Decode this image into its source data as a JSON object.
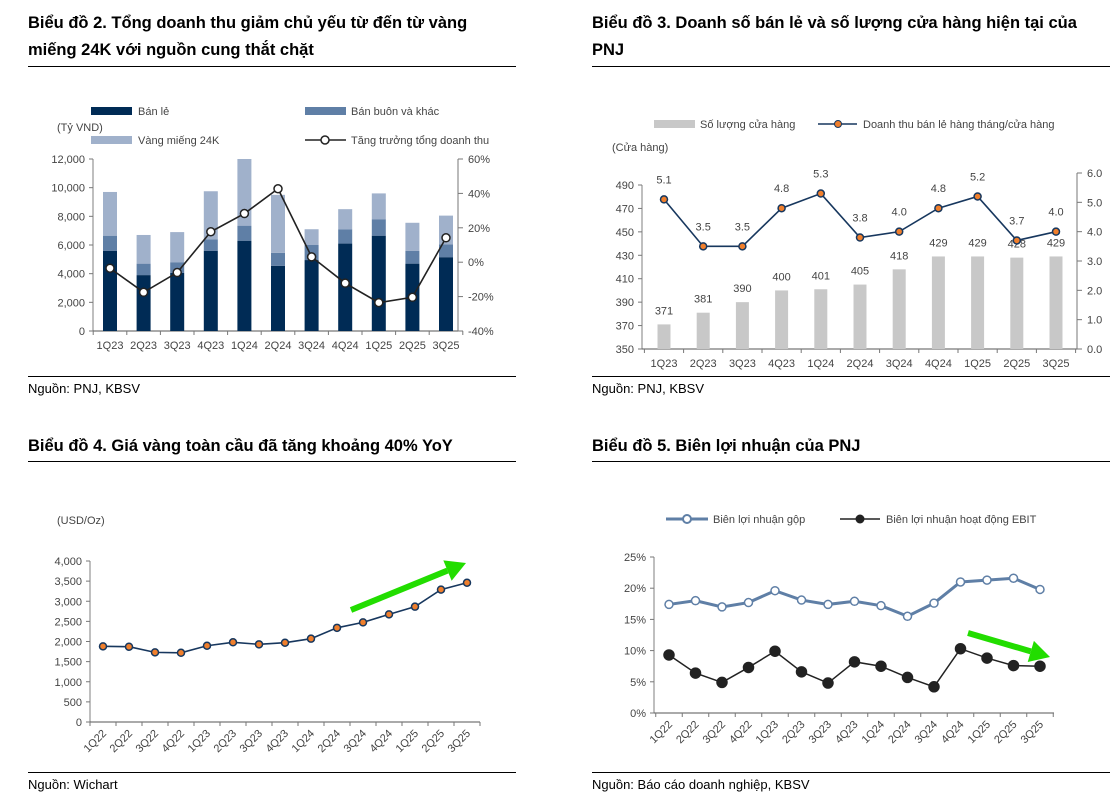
{
  "charts": [
    {
      "title": "Biểu đồ 2. Tổng doanh thu giảm chủ yếu từ đến từ vàng miếng 24K với nguồn cung thắt chặt",
      "source": "Nguồn: PNJ, KBSV"
    },
    {
      "title": "Biểu đồ 3. Doanh số bán lẻ và số lượng cửa hàng hiện tại của PNJ",
      "source": "Nguồn: PNJ, KBSV"
    },
    {
      "title": "Biểu đồ 4. Giá vàng toàn cầu đã tăng khoảng 40% YoY",
      "source": "Nguồn: Wichart"
    },
    {
      "title": "Biểu đồ 5. Biên lợi nhuận của PNJ",
      "source": "Nguồn: Báo cáo doanh nghiệp, KBSV"
    }
  ],
  "chart_data": [
    {
      "type": "bar",
      "stacked": true,
      "unit_label": "(Tỷ VND)",
      "categories": [
        "1Q23",
        "2Q23",
        "3Q23",
        "4Q23",
        "1Q24",
        "2Q24",
        "3Q24",
        "4Q24",
        "1Q25",
        "2Q25",
        "3Q25"
      ],
      "series": [
        {
          "name": "Bán lẻ",
          "type": "bar",
          "color": "#002b55",
          "values": [
            5600,
            3900,
            4050,
            5600,
            6300,
            4550,
            4950,
            6100,
            6650,
            4700,
            5150
          ]
        },
        {
          "name": "Bán buôn và khác",
          "type": "bar",
          "color": "#5f7fa6",
          "values": [
            1050,
            800,
            750,
            800,
            1050,
            900,
            1050,
            1000,
            1150,
            900,
            900
          ]
        },
        {
          "name": "Vàng miếng 24K",
          "type": "bar",
          "color": "#a0b1cb",
          "values": [
            3050,
            2000,
            2100,
            3350,
            4650,
            4050,
            1100,
            1400,
            1800,
            1950,
            2000
          ]
        },
        {
          "name": "Tăng trưởng tổng doanh thu",
          "type": "line",
          "axis": "right",
          "color": "#222222",
          "values": [
            -3.5,
            -17.5,
            -6,
            17.7,
            28.3,
            42.7,
            3.1,
            -12.2,
            -23.5,
            -20.4,
            14.2
          ]
        }
      ],
      "ylim": [
        0,
        12000
      ],
      "yticks": [
        "0",
        "2,000",
        "4,000",
        "6,000",
        "8,000",
        "10,000",
        "12,000"
      ],
      "y2lim": [
        -40,
        60
      ],
      "y2ticks": [
        "-40%",
        "-20%",
        "0%",
        "20%",
        "40%",
        "60%"
      ],
      "legend": "top"
    },
    {
      "type": "bar",
      "unit_label": "(Cửa hàng)",
      "categories": [
        "1Q23",
        "2Q23",
        "3Q23",
        "4Q23",
        "1Q24",
        "2Q24",
        "3Q24",
        "4Q24",
        "1Q25",
        "2Q25",
        "3Q25"
      ],
      "series": [
        {
          "name": "Số lượng cửa hàng",
          "type": "bar",
          "color": "#c8c8c8",
          "values": [
            371,
            381,
            390,
            400,
            401,
            405,
            418,
            429,
            429,
            428,
            429
          ]
        },
        {
          "name": "Doanh thu bán lẻ hàng tháng/cửa hàng",
          "type": "line",
          "axis": "right",
          "color": "#17375e",
          "marker": "#f07f2c",
          "values": [
            5.1,
            3.5,
            3.5,
            4.8,
            5.3,
            3.8,
            4.0,
            4.8,
            5.2,
            3.7,
            4.0
          ]
        }
      ],
      "ylim": [
        350,
        490
      ],
      "yticks": [
        "350",
        "370",
        "390",
        "410",
        "430",
        "450",
        "470",
        "490"
      ],
      "y2lim": [
        0,
        6
      ],
      "y2ticks": [
        "0.0",
        "1.0",
        "2.0",
        "3.0",
        "4.0",
        "5.0",
        "6.0"
      ],
      "legend": "top"
    },
    {
      "type": "line",
      "unit_label": "(USD/Oz)",
      "categories": [
        "1Q22",
        "2Q22",
        "3Q22",
        "4Q22",
        "1Q23",
        "2Q23",
        "3Q23",
        "4Q23",
        "1Q24",
        "2Q24",
        "3Q24",
        "4Q24",
        "1Q25",
        "2Q25",
        "3Q25"
      ],
      "series": [
        {
          "type": "line",
          "color": "#17375e",
          "marker": "#f07f2c",
          "values": [
            1880,
            1870,
            1730,
            1720,
            1895,
            1980,
            1930,
            1970,
            2070,
            2340,
            2475,
            2675,
            2865,
            3290,
            3460
          ]
        }
      ],
      "ylim": [
        0,
        4000
      ],
      "yticks": [
        "0",
        "500",
        "1,000",
        "1,500",
        "2,000",
        "2,500",
        "3,000",
        "3,500",
        "4,000"
      ],
      "annotation": "green upward arrow",
      "arrow_color": "#22dd00"
    },
    {
      "type": "line",
      "categories": [
        "1Q22",
        "2Q22",
        "3Q22",
        "4Q22",
        "1Q23",
        "2Q23",
        "3Q23",
        "4Q23",
        "1Q24",
        "2Q24",
        "3Q24",
        "4Q24",
        "1Q25",
        "2Q25",
        "3Q25"
      ],
      "series": [
        {
          "name": "Biên lợi nhuận gộp",
          "type": "line",
          "color": "#5f7fa6",
          "marker": "hollow",
          "values": [
            17.4,
            18.0,
            17.0,
            17.7,
            19.6,
            18.1,
            17.4,
            17.9,
            17.2,
            15.5,
            17.6,
            21.0,
            21.3,
            21.6,
            19.8
          ]
        },
        {
          "name": "Biên lợi nhuận hoạt động EBIT",
          "type": "line",
          "color": "#222222",
          "marker": "filled",
          "values": [
            9.3,
            6.4,
            4.9,
            7.3,
            9.9,
            6.6,
            4.8,
            8.2,
            7.5,
            5.7,
            4.2,
            10.3,
            8.8,
            7.6,
            7.5
          ]
        }
      ],
      "ylim": [
        0,
        25
      ],
      "yticks": [
        "0%",
        "5%",
        "10%",
        "15%",
        "20%",
        "25%"
      ],
      "legend": "top",
      "annotation": "green downward arrow",
      "arrow_color": "#22dd00"
    }
  ]
}
